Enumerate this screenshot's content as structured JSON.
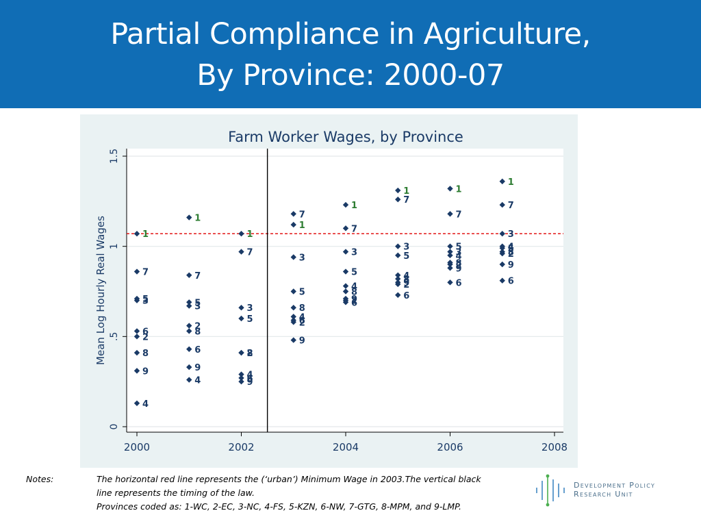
{
  "slide": {
    "title_line1": "Partial Compliance in Agriculture,",
    "title_line2": "By Province: 2000-07"
  },
  "notes": {
    "label": "Notes:",
    "line1": "The horizontal red line represents the (‘urban’) Minimum Wage in 2003.The vertical black",
    "line2": "line represents the timing of the law.",
    "line3": "Provinces coded as: 1-WC, 2-EC, 3-NC, 4-FS, 5-KZN, 6-NW, 7-GTG, 8-MPM, and 9-LMP."
  },
  "logo": {
    "line1": "Development Policy",
    "line2": "Research Unit"
  },
  "colors": {
    "banner": "#106db5",
    "plot_bg": "#ffffff",
    "outer_bg": "#eaf2f3",
    "marker": "#1a3a66",
    "min_wage_line": "#e00000",
    "law_line": "#000000",
    "title_text": "#1a3a66"
  },
  "chart_data": {
    "type": "scatter",
    "title": "Farm Worker Wages, by Province",
    "xlabel": "",
    "ylabel": "Mean Log Hourly Real Wages",
    "xlim": [
      2000,
      2008
    ],
    "ylim": [
      0,
      1.5
    ],
    "xticks": [
      "2000",
      "2002",
      "2004",
      "2006",
      "2008"
    ],
    "yticks": [
      "0",
      ".5",
      "1",
      "1.5"
    ],
    "grid": true,
    "hline": {
      "y": 1.07,
      "style": "dashed",
      "color": "red"
    },
    "vline": {
      "x": 2002.5,
      "style": "solid",
      "color": "black"
    },
    "points": [
      {
        "x": 2000,
        "y": 1.07,
        "label": "1"
      },
      {
        "x": 2000,
        "y": 0.5,
        "label": "2"
      },
      {
        "x": 2000,
        "y": 0.7,
        "label": "3"
      },
      {
        "x": 2000,
        "y": 0.13,
        "label": "4"
      },
      {
        "x": 2000,
        "y": 0.71,
        "label": "5"
      },
      {
        "x": 2000,
        "y": 0.53,
        "label": "6"
      },
      {
        "x": 2000,
        "y": 0.86,
        "label": "7"
      },
      {
        "x": 2000,
        "y": 0.41,
        "label": "8"
      },
      {
        "x": 2000,
        "y": 0.31,
        "label": "9"
      },
      {
        "x": 2001,
        "y": 1.16,
        "label": "1"
      },
      {
        "x": 2001,
        "y": 0.56,
        "label": "2"
      },
      {
        "x": 2001,
        "y": 0.67,
        "label": "3"
      },
      {
        "x": 2001,
        "y": 0.26,
        "label": "4"
      },
      {
        "x": 2001,
        "y": 0.69,
        "label": "5"
      },
      {
        "x": 2001,
        "y": 0.43,
        "label": "6"
      },
      {
        "x": 2001,
        "y": 0.84,
        "label": "7"
      },
      {
        "x": 2001,
        "y": 0.53,
        "label": "8"
      },
      {
        "x": 2001,
        "y": 0.33,
        "label": "9"
      },
      {
        "x": 2002,
        "y": 1.07,
        "label": "1"
      },
      {
        "x": 2002,
        "y": 0.41,
        "label": "2"
      },
      {
        "x": 2002,
        "y": 0.66,
        "label": "3"
      },
      {
        "x": 2002,
        "y": 0.29,
        "label": "4"
      },
      {
        "x": 2002,
        "y": 0.6,
        "label": "5"
      },
      {
        "x": 2002,
        "y": 0.27,
        "label": "6"
      },
      {
        "x": 2002,
        "y": 0.97,
        "label": "7"
      },
      {
        "x": 2002,
        "y": 0.41,
        "label": "8"
      },
      {
        "x": 2002,
        "y": 0.25,
        "label": "9"
      },
      {
        "x": 2003,
        "y": 1.12,
        "label": "1"
      },
      {
        "x": 2003,
        "y": 0.58,
        "label": "2"
      },
      {
        "x": 2003,
        "y": 0.94,
        "label": "3"
      },
      {
        "x": 2003,
        "y": 0.61,
        "label": "4"
      },
      {
        "x": 2003,
        "y": 0.75,
        "label": "5"
      },
      {
        "x": 2003,
        "y": 0.59,
        "label": "6"
      },
      {
        "x": 2003,
        "y": 1.18,
        "label": "7"
      },
      {
        "x": 2003,
        "y": 0.66,
        "label": "8"
      },
      {
        "x": 2003,
        "y": 0.48,
        "label": "9"
      },
      {
        "x": 2004,
        "y": 1.23,
        "label": "1"
      },
      {
        "x": 2004,
        "y": 0.7,
        "label": "2"
      },
      {
        "x": 2004,
        "y": 0.97,
        "label": "3"
      },
      {
        "x": 2004,
        "y": 0.78,
        "label": "4"
      },
      {
        "x": 2004,
        "y": 0.86,
        "label": "5"
      },
      {
        "x": 2004,
        "y": 0.69,
        "label": "6"
      },
      {
        "x": 2004,
        "y": 1.1,
        "label": "7"
      },
      {
        "x": 2004,
        "y": 0.75,
        "label": "8"
      },
      {
        "x": 2004,
        "y": 0.71,
        "label": "9"
      },
      {
        "x": 2005,
        "y": 1.31,
        "label": "1"
      },
      {
        "x": 2005,
        "y": 0.79,
        "label": "2"
      },
      {
        "x": 2005,
        "y": 1.0,
        "label": "3"
      },
      {
        "x": 2005,
        "y": 0.84,
        "label": "4"
      },
      {
        "x": 2005,
        "y": 0.95,
        "label": "5"
      },
      {
        "x": 2005,
        "y": 0.73,
        "label": "6"
      },
      {
        "x": 2005,
        "y": 1.26,
        "label": "7"
      },
      {
        "x": 2005,
        "y": 0.82,
        "label": "8"
      },
      {
        "x": 2005,
        "y": 0.8,
        "label": "9"
      },
      {
        "x": 2006,
        "y": 1.32,
        "label": "1"
      },
      {
        "x": 2006,
        "y": 0.9,
        "label": "2"
      },
      {
        "x": 2006,
        "y": 0.97,
        "label": "3"
      },
      {
        "x": 2006,
        "y": 0.95,
        "label": "4"
      },
      {
        "x": 2006,
        "y": 1.0,
        "label": "5"
      },
      {
        "x": 2006,
        "y": 0.8,
        "label": "6"
      },
      {
        "x": 2006,
        "y": 1.18,
        "label": "7"
      },
      {
        "x": 2006,
        "y": 0.91,
        "label": "8"
      },
      {
        "x": 2006,
        "y": 0.88,
        "label": "9"
      },
      {
        "x": 2007,
        "y": 1.36,
        "label": "1"
      },
      {
        "x": 2007,
        "y": 0.96,
        "label": "2"
      },
      {
        "x": 2007,
        "y": 1.07,
        "label": "3"
      },
      {
        "x": 2007,
        "y": 1.0,
        "label": "4"
      },
      {
        "x": 2007,
        "y": 0.99,
        "label": "5"
      },
      {
        "x": 2007,
        "y": 0.81,
        "label": "6"
      },
      {
        "x": 2007,
        "y": 1.23,
        "label": "7"
      },
      {
        "x": 2007,
        "y": 0.97,
        "label": "8"
      },
      {
        "x": 2007,
        "y": 0.9,
        "label": "9"
      }
    ]
  }
}
